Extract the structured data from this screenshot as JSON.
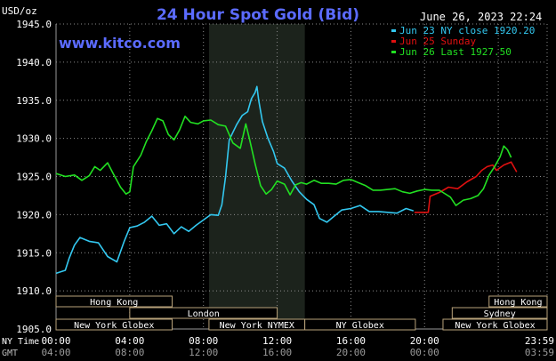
{
  "chart_data": {
    "type": "line",
    "title": "24 Hour Spot Gold (Bid)",
    "watermark": "www.kitco.com",
    "timestamp": "June 26, 2023 22:24",
    "y_unit_label": "USD/oz",
    "ylim": [
      1905.0,
      1945.0
    ],
    "y_ticks": [
      "1905.0",
      "1910.0",
      "1915.0",
      "1920.0",
      "1925.0",
      "1930.0",
      "1935.0",
      "1940.0",
      "1945.0"
    ],
    "x_tick_labels_ny": [
      "00:00",
      "04:00",
      "08:00",
      "12:00",
      "16:00",
      "20:00",
      "23:59"
    ],
    "x_tick_labels_gmt": [
      "04:00",
      "08:00",
      "12:00",
      "16:00",
      "20:00",
      "00:00",
      "03:59"
    ],
    "x_row_label_ny": "NY Time",
    "x_row_label_gmt": "GMT",
    "highlight_window_hours": [
      8.3,
      13.5
    ],
    "legend_position": "top-right",
    "series": [
      {
        "name": "Jun 23 NY close 1920.20",
        "color": "#33c8f0",
        "points": [
          [
            0,
            1912.3
          ],
          [
            0.5,
            1912.7
          ],
          [
            0.7,
            1914.2
          ],
          [
            1.0,
            1916.0
          ],
          [
            1.3,
            1917.0
          ],
          [
            1.8,
            1916.5
          ],
          [
            2.3,
            1916.3
          ],
          [
            2.8,
            1914.5
          ],
          [
            3.3,
            1913.8
          ],
          [
            3.7,
            1916.5
          ],
          [
            4.0,
            1918.3
          ],
          [
            4.4,
            1918.5
          ],
          [
            4.8,
            1919.0
          ],
          [
            5.2,
            1919.8
          ],
          [
            5.6,
            1918.6
          ],
          [
            6.0,
            1918.8
          ],
          [
            6.4,
            1917.5
          ],
          [
            6.8,
            1918.4
          ],
          [
            7.2,
            1917.8
          ],
          [
            7.6,
            1918.6
          ],
          [
            8.0,
            1919.3
          ],
          [
            8.4,
            1920.0
          ],
          [
            8.8,
            1919.9
          ],
          [
            9.0,
            1921.3
          ],
          [
            9.2,
            1925.0
          ],
          [
            9.4,
            1929.8
          ],
          [
            9.6,
            1930.8
          ],
          [
            9.8,
            1931.8
          ],
          [
            10.1,
            1933.0
          ],
          [
            10.4,
            1933.5
          ],
          [
            10.6,
            1935.2
          ],
          [
            10.8,
            1936.0
          ],
          [
            10.9,
            1936.8
          ],
          [
            11.0,
            1935.0
          ],
          [
            11.2,
            1932.2
          ],
          [
            11.5,
            1930.0
          ],
          [
            11.8,
            1928.3
          ],
          [
            12.0,
            1926.7
          ],
          [
            12.4,
            1926.1
          ],
          [
            12.8,
            1924.4
          ],
          [
            13.2,
            1923.0
          ],
          [
            13.6,
            1922.0
          ],
          [
            14.0,
            1921.3
          ],
          [
            14.3,
            1919.5
          ],
          [
            14.7,
            1919.0
          ],
          [
            15.0,
            1919.6
          ],
          [
            15.5,
            1920.6
          ],
          [
            16.0,
            1920.8
          ],
          [
            16.5,
            1921.2
          ],
          [
            17.0,
            1920.4
          ],
          [
            17.5,
            1920.4
          ],
          [
            18.0,
            1920.3
          ],
          [
            18.5,
            1920.2
          ],
          [
            19.0,
            1920.8
          ],
          [
            19.4,
            1920.5
          ]
        ]
      },
      {
        "name": "Jun 25 Sunday",
        "color": "#e01010",
        "points": [
          [
            19.45,
            1920.3
          ],
          [
            20.2,
            1920.3
          ],
          [
            20.3,
            1922.4
          ],
          [
            20.8,
            1922.9
          ],
          [
            21.3,
            1923.6
          ],
          [
            21.8,
            1923.4
          ],
          [
            22.3,
            1924.3
          ],
          [
            22.8,
            1925.0
          ],
          [
            23.1,
            1925.8
          ],
          [
            23.4,
            1926.3
          ],
          [
            23.7,
            1926.5
          ],
          [
            23.9,
            1925.8
          ],
          [
            24.3,
            1926.5
          ],
          [
            24.7,
            1926.9
          ],
          [
            25.0,
            1925.6
          ]
        ]
      },
      {
        "name": "Jun 26 Last 1927.50",
        "color": "#22e022",
        "points": [
          [
            0,
            1925.4
          ],
          [
            0.5,
            1925.0
          ],
          [
            1.0,
            1925.2
          ],
          [
            1.4,
            1924.5
          ],
          [
            1.8,
            1925.1
          ],
          [
            2.1,
            1926.3
          ],
          [
            2.4,
            1925.8
          ],
          [
            2.8,
            1926.8
          ],
          [
            3.1,
            1925.4
          ],
          [
            3.5,
            1923.6
          ],
          [
            3.8,
            1922.7
          ],
          [
            4.0,
            1923.0
          ],
          [
            4.2,
            1926.3
          ],
          [
            4.6,
            1927.8
          ],
          [
            4.9,
            1929.6
          ],
          [
            5.2,
            1931.0
          ],
          [
            5.5,
            1932.6
          ],
          [
            5.8,
            1932.3
          ],
          [
            6.1,
            1930.5
          ],
          [
            6.4,
            1929.8
          ],
          [
            6.7,
            1931.1
          ],
          [
            7.0,
            1932.9
          ],
          [
            7.3,
            1932.1
          ],
          [
            7.7,
            1931.9
          ],
          [
            8.0,
            1932.3
          ],
          [
            8.4,
            1932.4
          ],
          [
            8.8,
            1931.8
          ],
          [
            9.2,
            1931.6
          ],
          [
            9.6,
            1929.4
          ],
          [
            10.0,
            1928.7
          ],
          [
            10.3,
            1931.9
          ],
          [
            10.5,
            1929.9
          ],
          [
            10.8,
            1926.7
          ],
          [
            11.1,
            1923.8
          ],
          [
            11.4,
            1922.7
          ],
          [
            11.7,
            1923.3
          ],
          [
            12.0,
            1924.4
          ],
          [
            12.4,
            1924.0
          ],
          [
            12.7,
            1922.6
          ],
          [
            13.0,
            1923.9
          ],
          [
            13.3,
            1924.2
          ],
          [
            13.6,
            1924.0
          ],
          [
            14.0,
            1924.5
          ],
          [
            14.4,
            1924.1
          ],
          [
            14.8,
            1924.1
          ],
          [
            15.2,
            1924.0
          ],
          [
            15.6,
            1924.5
          ],
          [
            16.0,
            1924.6
          ],
          [
            16.4,
            1924.2
          ],
          [
            16.8,
            1923.8
          ],
          [
            17.2,
            1923.2
          ],
          [
            17.6,
            1923.2
          ],
          [
            18.0,
            1923.3
          ],
          [
            18.4,
            1923.4
          ],
          [
            18.8,
            1923.0
          ],
          [
            19.2,
            1922.8
          ],
          [
            19.6,
            1923.1
          ],
          [
            20.0,
            1923.3
          ],
          [
            20.4,
            1923.2
          ],
          [
            20.8,
            1923.2
          ],
          [
            21.0,
            1922.9
          ],
          [
            21.4,
            1922.3
          ],
          [
            21.7,
            1921.2
          ],
          [
            22.1,
            1921.9
          ],
          [
            22.5,
            1922.1
          ],
          [
            22.9,
            1922.5
          ],
          [
            23.2,
            1923.4
          ],
          [
            23.5,
            1925.2
          ],
          [
            23.8,
            1926.3
          ],
          [
            24.1,
            1927.6
          ],
          [
            24.3,
            1929.0
          ],
          [
            24.5,
            1928.5
          ],
          [
            24.7,
            1927.5
          ]
        ]
      }
    ],
    "session_rows": [
      {
        "sessions": [
          {
            "label": "Hong Kong",
            "start": 0,
            "end": 6.3
          },
          {
            "label": "Hong Kong",
            "start": 23.5,
            "end": 27.0
          }
        ]
      },
      {
        "sessions": [
          {
            "label": "London",
            "start": 4.0,
            "end": 12.0
          },
          {
            "label": "Sydney",
            "start": 21.5,
            "end": 27.0
          }
        ]
      },
      {
        "sessions": [
          {
            "label": "New York Globex",
            "start": 0,
            "end": 6.3
          },
          {
            "label": "New York NYMEX",
            "start": 8.3,
            "end": 13.5
          },
          {
            "label": "NY Globex",
            "start": 13.5,
            "end": 19.5
          },
          {
            "label": "New York Globex",
            "start": 21.0,
            "end": 27.0
          }
        ]
      }
    ]
  }
}
